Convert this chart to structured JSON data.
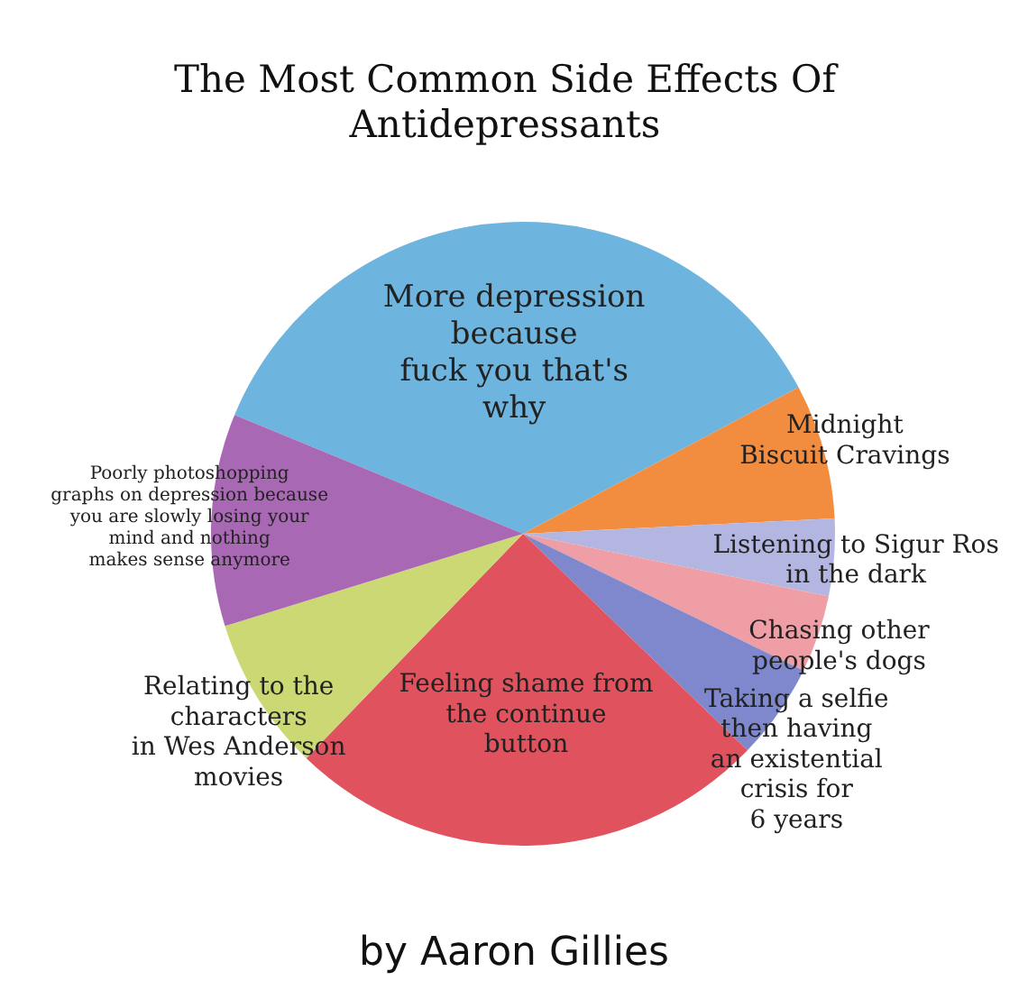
{
  "chart_data": {
    "type": "pie",
    "title": "The Most Common Side Effects Of\nAntidepressants",
    "categories": [
      "More depression\nbecause\nfuck you that's\nwhy",
      "Midnight\nBiscuit Cravings",
      "Listening to Sigur Ros\nin the dark",
      "Chasing other\npeople's dogs",
      "Taking a selfie\nthen having\nan existential\ncrisis for\n6 years",
      "Feeling shame from\nthe continue\nbutton",
      "Relating to the\ncharacters\nin Wes Anderson\nmovies",
      "Poorly photoshopping\ngraphs on depression because\nyou are slowly losing your\nmind and nothing\nmakes sense anymore"
    ],
    "values": [
      36,
      7,
      4,
      4,
      5,
      25,
      8,
      11
    ],
    "colors": [
      "#6db4de",
      "#f28c3e",
      "#b4b6e2",
      "#ef9ea6",
      "#7f88cc",
      "#e0525e",
      "#cbd873",
      "#a868b4"
    ],
    "annotations": [
      "by Aaron Gillies"
    ]
  }
}
